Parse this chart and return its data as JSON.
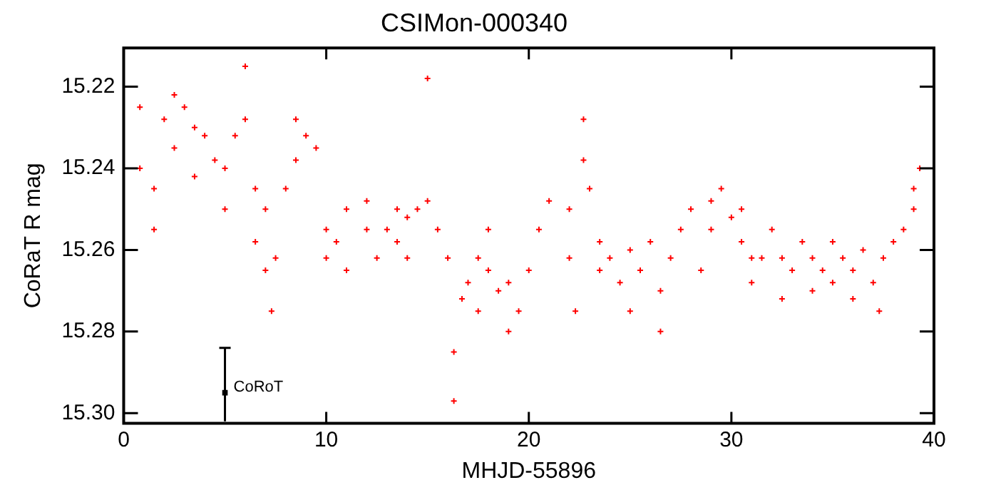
{
  "chart_data": {
    "type": "scatter",
    "title": "CSIMon-000340",
    "xlabel": "MHJD-55896",
    "ylabel": "CoRaT R mag",
    "xlim": [
      0,
      40
    ],
    "xticks": [
      0,
      10,
      20,
      30,
      40
    ],
    "ylim": [
      15.3025,
      15.2105
    ],
    "yticks": [
      15.22,
      15.24,
      15.26,
      15.28,
      {
        "value": 15.3,
        "label": "15.30"
      }
    ],
    "grid": false,
    "legend": false,
    "marker": "cross",
    "series": [
      {
        "color": "#ff0000",
        "x": [
          0.8,
          0.8,
          1.5,
          1.5,
          2,
          2.5,
          2.5,
          3,
          3.5,
          3.5,
          4,
          4.5,
          5,
          5,
          5.5,
          6,
          6,
          6.5,
          6.5,
          7,
          7,
          7.3,
          7.5,
          8,
          8.5,
          8.5,
          9,
          9.5,
          10,
          10,
          10.5,
          11,
          11,
          12,
          12,
          12.5,
          13,
          13.5,
          13.5,
          14,
          14,
          14.5,
          15,
          15,
          15.5,
          16,
          16.3,
          16.3,
          16.7,
          17,
          17.5,
          17.5,
          18,
          18,
          18.5,
          19,
          19,
          19.5,
          20,
          20.5,
          21,
          22,
          22,
          22.3,
          22.7,
          22.7,
          23,
          23.5,
          23.5,
          24,
          24.5,
          25,
          25,
          25.5,
          26,
          26.5,
          26.5,
          27,
          27.5,
          28,
          28.5,
          29,
          29,
          29.5,
          30,
          30.5,
          30.5,
          31,
          31,
          31.5,
          32,
          32.5,
          32.5,
          33,
          33.5,
          34,
          34,
          34.5,
          35,
          35,
          35.5,
          36,
          36,
          36.5,
          37,
          37.3,
          37.5,
          38,
          38.5,
          39,
          39,
          39.3
        ],
        "values": [
          15.225,
          15.24,
          15.245,
          15.255,
          15.228,
          15.222,
          15.235,
          15.225,
          15.23,
          15.242,
          15.232,
          15.238,
          15.24,
          15.25,
          15.232,
          15.215,
          15.228,
          15.245,
          15.258,
          15.25,
          15.265,
          15.275,
          15.262,
          15.245,
          15.238,
          15.228,
          15.232,
          15.235,
          15.255,
          15.262,
          15.258,
          15.25,
          15.265,
          15.255,
          15.248,
          15.262,
          15.255,
          15.25,
          15.258,
          15.262,
          15.252,
          15.25,
          15.218,
          15.248,
          15.255,
          15.262,
          15.285,
          15.297,
          15.272,
          15.268,
          15.275,
          15.262,
          15.255,
          15.265,
          15.27,
          15.268,
          15.28,
          15.275,
          15.265,
          15.255,
          15.248,
          15.25,
          15.262,
          15.275,
          15.228,
          15.238,
          15.245,
          15.258,
          15.265,
          15.262,
          15.268,
          15.26,
          15.275,
          15.265,
          15.258,
          15.27,
          15.28,
          15.262,
          15.255,
          15.25,
          15.265,
          15.248,
          15.255,
          15.245,
          15.252,
          15.25,
          15.258,
          15.262,
          15.268,
          15.262,
          15.255,
          15.262,
          15.272,
          15.265,
          15.258,
          15.262,
          15.27,
          15.265,
          15.258,
          15.268,
          15.262,
          15.265,
          15.272,
          15.26,
          15.268,
          15.275,
          15.262,
          15.258,
          15.255,
          15.245,
          15.25,
          15.24
        ]
      },
      {
        "name": "CoRoT",
        "color": "#000000",
        "marker": "square",
        "x": [
          5
        ],
        "values": [
          15.295
        ],
        "errors": [
          [
            15.284,
            15.302
          ]
        ]
      }
    ]
  }
}
